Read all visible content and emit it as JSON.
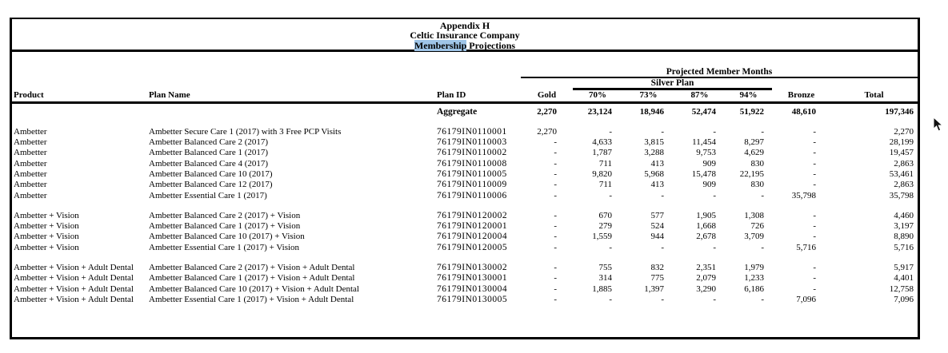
{
  "title": {
    "line1": "Appendix H",
    "line2": "Celtic Insurance Company",
    "line3_highlight": "Membership",
    "line3_rest": " Projections"
  },
  "colors": {
    "search_highlight": "#9fc5e8",
    "border": "#000000",
    "background": "#ffffff"
  },
  "header": {
    "projected": "Projected Member Months",
    "silver_plan": "Silver Plan",
    "columns": {
      "product": "Product",
      "plan_name": "Plan Name",
      "plan_id": "Plan ID",
      "gold": "Gold",
      "s70": "70%",
      "s73": "73%",
      "s87": "87%",
      "s94": "94%",
      "bronze": "Bronze",
      "total": "Total"
    }
  },
  "aggregate": {
    "label": "Aggregate",
    "gold": "2,270",
    "s70": "23,124",
    "s73": "18,946",
    "s87": "52,474",
    "s94": "51,922",
    "bronze": "48,610",
    "total": "197,346"
  },
  "groups": [
    {
      "rows": [
        {
          "product": "Ambetter",
          "plan_name": "Ambetter Secure Care 1 (2017) with 3 Free PCP Visits",
          "plan_id": "76179IN0110001",
          "gold": "2,270",
          "s70": "-",
          "s73": "-",
          "s87": "-",
          "s94": "-",
          "bronze": "-",
          "total": "2,270"
        },
        {
          "product": "Ambetter",
          "plan_name": "Ambetter Balanced Care 2 (2017)",
          "plan_id": "76179IN0110003",
          "gold": "-",
          "s70": "4,633",
          "s73": "3,815",
          "s87": "11,454",
          "s94": "8,297",
          "bronze": "-",
          "total": "28,199"
        },
        {
          "product": "Ambetter",
          "plan_name": "Ambetter Balanced Care 1 (2017)",
          "plan_id": "76179IN0110002",
          "gold": "-",
          "s70": "1,787",
          "s73": "3,288",
          "s87": "9,753",
          "s94": "4,629",
          "bronze": "-",
          "total": "19,457"
        },
        {
          "product": "Ambetter",
          "plan_name": "Ambetter Balanced Care 4 (2017)",
          "plan_id": "76179IN0110008",
          "gold": "-",
          "s70": "711",
          "s73": "413",
          "s87": "909",
          "s94": "830",
          "bronze": "-",
          "total": "2,863"
        },
        {
          "product": "Ambetter",
          "plan_name": "Ambetter Balanced Care 10 (2017)",
          "plan_id": "76179IN0110005",
          "gold": "-",
          "s70": "9,820",
          "s73": "5,968",
          "s87": "15,478",
          "s94": "22,195",
          "bronze": "-",
          "total": "53,461"
        },
        {
          "product": "Ambetter",
          "plan_name": "Ambetter Balanced Care 12 (2017)",
          "plan_id": "76179IN0110009",
          "gold": "-",
          "s70": "711",
          "s73": "413",
          "s87": "909",
          "s94": "830",
          "bronze": "-",
          "total": "2,863"
        },
        {
          "product": "Ambetter",
          "plan_name": "Ambetter Essential Care 1 (2017)",
          "plan_id": "76179IN0110006",
          "gold": "-",
          "s70": "-",
          "s73": "-",
          "s87": "-",
          "s94": "-",
          "bronze": "35,798",
          "total": "35,798"
        }
      ]
    },
    {
      "rows": [
        {
          "product": "Ambetter + Vision",
          "plan_name": "Ambetter Balanced Care 2 (2017) + Vision",
          "plan_id": "76179IN0120002",
          "gold": "-",
          "s70": "670",
          "s73": "577",
          "s87": "1,905",
          "s94": "1,308",
          "bronze": "-",
          "total": "4,460"
        },
        {
          "product": "Ambetter + Vision",
          "plan_name": "Ambetter Balanced Care 1 (2017) + Vision",
          "plan_id": "76179IN0120001",
          "gold": "-",
          "s70": "279",
          "s73": "524",
          "s87": "1,668",
          "s94": "726",
          "bronze": "-",
          "total": "3,197"
        },
        {
          "product": "Ambetter + Vision",
          "plan_name": "Ambetter Balanced Care 10 (2017) + Vision",
          "plan_id": "76179IN0120004",
          "gold": "-",
          "s70": "1,559",
          "s73": "944",
          "s87": "2,678",
          "s94": "3,709",
          "bronze": "-",
          "total": "8,890"
        },
        {
          "product": "Ambetter + Vision",
          "plan_name": "Ambetter Essential Care 1 (2017) + Vision",
          "plan_id": "76179IN0120005",
          "gold": "-",
          "s70": "-",
          "s73": "-",
          "s87": "-",
          "s94": "-",
          "bronze": "5,716",
          "total": "5,716"
        }
      ]
    },
    {
      "rows": [
        {
          "product": "Ambetter + Vision + Adult Dental",
          "plan_name": "Ambetter Balanced Care 2 (2017) + Vision + Adult Dental",
          "plan_id": "76179IN0130002",
          "gold": "-",
          "s70": "755",
          "s73": "832",
          "s87": "2,351",
          "s94": "1,979",
          "bronze": "-",
          "total": "5,917"
        },
        {
          "product": "Ambetter + Vision + Adult Dental",
          "plan_name": "Ambetter Balanced Care 1 (2017) + Vision + Adult Dental",
          "plan_id": "76179IN0130001",
          "gold": "-",
          "s70": "314",
          "s73": "775",
          "s87": "2,079",
          "s94": "1,233",
          "bronze": "-",
          "total": "4,401"
        },
        {
          "product": "Ambetter + Vision + Adult Dental",
          "plan_name": "Ambetter Balanced Care 10 (2017) + Vision + Adult Dental",
          "plan_id": "76179IN0130004",
          "gold": "-",
          "s70": "1,885",
          "s73": "1,397",
          "s87": "3,290",
          "s94": "6,186",
          "bronze": "-",
          "total": "12,758"
        },
        {
          "product": "Ambetter + Vision + Adult Dental",
          "plan_name": "Ambetter Essential Care 1 (2017) + Vision + Adult Dental",
          "plan_id": "76179IN0130005",
          "gold": "-",
          "s70": "-",
          "s73": "-",
          "s87": "-",
          "s94": "-",
          "bronze": "7,096",
          "total": "7,096"
        }
      ]
    }
  ],
  "cursor": "arrow-pointer"
}
